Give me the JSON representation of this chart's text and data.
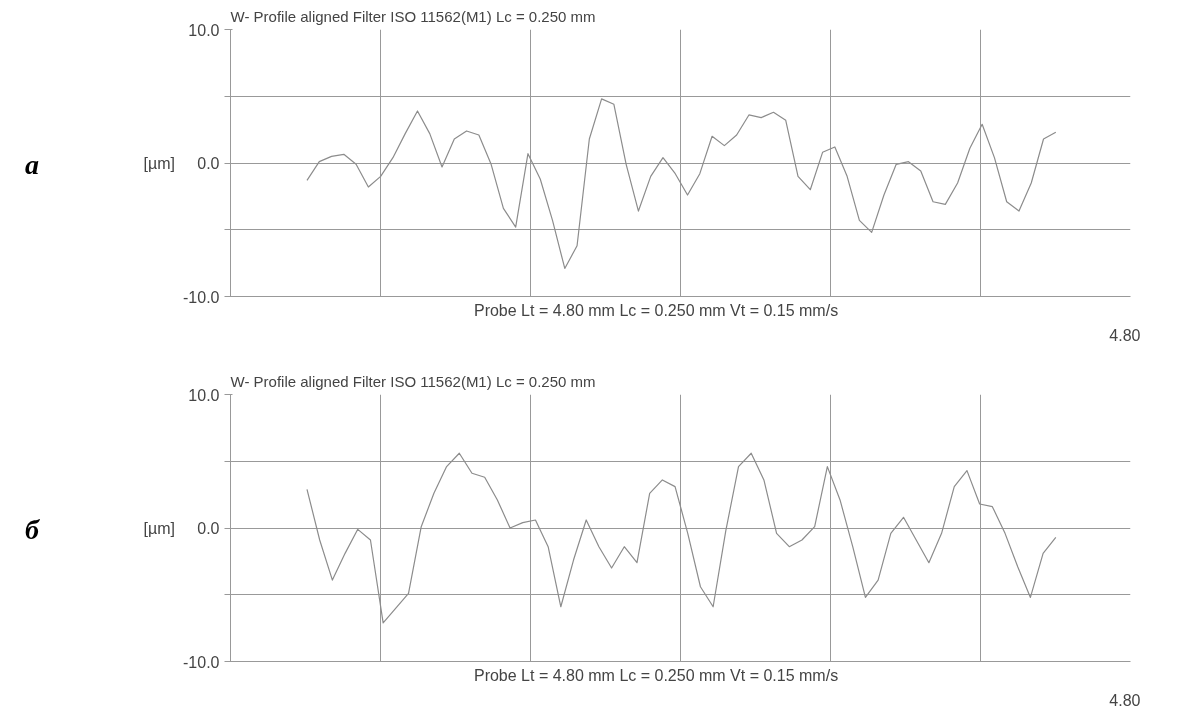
{
  "chart_data": [
    {
      "type": "line",
      "title": "W-  Profile  aligned  Filter  ISO 11562(M1)  Lc = 0.250  mm",
      "xlabel": "Probe     Lt = 4.80  mm  Lc = 0.250  mm    Vt = 0.15  mm/s",
      "ylabel": "[µm]",
      "annotations": [
        "a",
        "4.80"
      ],
      "grid": true,
      "ylim": [
        -10,
        10
      ],
      "categories": [
        null,
        null,
        null,
        null,
        null,
        null,
        null,
        null,
        null,
        null,
        null,
        null,
        null,
        null,
        null,
        null,
        null,
        null,
        null,
        null,
        null,
        null,
        null,
        null,
        null,
        null,
        null,
        null,
        null,
        null,
        null,
        null,
        null,
        null,
        null,
        null,
        null,
        null,
        null,
        null,
        null,
        null,
        null,
        null,
        null,
        null,
        null,
        null,
        null,
        null,
        null,
        null,
        null,
        null,
        null,
        null,
        null,
        null,
        null,
        null,
        null,
        null
      ],
      "yticks": [
        {
          "value": -10,
          "label": "-10.0"
        },
        {
          "value": -5,
          "label": null
        },
        {
          "value": 0,
          "label": "0.0"
        },
        {
          "value": 5,
          "label": null
        },
        {
          "value": 10,
          "label": "10.0"
        }
      ],
      "series": [
        {
          "color": "#8c8c8c",
          "values": [
            -1.3,
            0.1,
            0.5,
            0.65,
            -0.1,
            -1.8,
            -1.0,
            0.4,
            2.2,
            3.9,
            2.2,
            -0.3,
            1.8,
            2.4,
            2.1,
            -0.1,
            -3.4,
            -4.8,
            0.7,
            -1.2,
            -4.3,
            -7.9,
            -6.2,
            1.8,
            4.8,
            4.4,
            -0.1,
            -3.6,
            -1.0,
            0.4,
            -0.8,
            -2.4,
            -0.8,
            2.0,
            1.3,
            2.1,
            3.6,
            3.4,
            3.8,
            3.2,
            -1.0,
            -2.0,
            0.8,
            1.2,
            -1.0,
            -4.3,
            -5.2,
            -2.4,
            -0.1,
            0.1,
            -0.6,
            -2.9,
            -3.1,
            -1.5,
            1.1,
            2.9,
            0.4,
            -2.9,
            -3.6,
            -1.5,
            1.8,
            2.3
          ]
        }
      ]
    },
    {
      "type": "line",
      "title": "W-  Profile  aligned  Filter  ISO 11562(M1)  Lc = 0.250  mm",
      "xlabel": "Probe     Lt = 4.80  mm  Lc = 0.250  mm    Vt = 0.15  mm/s",
      "ylabel": "[µm]",
      "annotations": [
        "б",
        "4.80"
      ],
      "grid": true,
      "ylim": [
        -10,
        10
      ],
      "categories": [
        null,
        null,
        null,
        null,
        null,
        null,
        null,
        null,
        null,
        null,
        null,
        null,
        null,
        null,
        null,
        null,
        null,
        null,
        null,
        null,
        null,
        null,
        null,
        null,
        null,
        null,
        null,
        null,
        null,
        null,
        null,
        null,
        null,
        null,
        null,
        null,
        null,
        null,
        null,
        null,
        null,
        null,
        null,
        null,
        null,
        null,
        null,
        null,
        null,
        null,
        null,
        null,
        null,
        null,
        null,
        null,
        null,
        null,
        null,
        null
      ],
      "yticks": [
        {
          "value": -10,
          "label": "-10.0"
        },
        {
          "value": -5,
          "label": null
        },
        {
          "value": 0,
          "label": "0.0"
        },
        {
          "value": 5,
          "label": null
        },
        {
          "value": 10,
          "label": "10.0"
        }
      ],
      "series": [
        {
          "color": "#8c8c8c",
          "values": [
            2.9,
            -0.9,
            -3.9,
            -1.9,
            -0.1,
            -0.9,
            -7.1,
            -6.0,
            -4.9,
            0.1,
            2.6,
            4.6,
            5.6,
            4.1,
            3.8,
            2.1,
            0.0,
            0.4,
            0.6,
            -1.4,
            -5.9,
            -2.4,
            0.6,
            -1.4,
            -3.0,
            -1.4,
            -2.6,
            2.6,
            3.6,
            3.1,
            -0.4,
            -4.4,
            -5.9,
            -0.2,
            4.6,
            5.6,
            3.6,
            -0.4,
            -1.4,
            -0.9,
            0.1,
            4.6,
            2.1,
            -1.4,
            -5.2,
            -3.9,
            -0.4,
            0.8,
            -0.9,
            -2.6,
            -0.4,
            3.1,
            4.3,
            1.8,
            1.6,
            -0.4,
            -2.9,
            -5.2,
            -1.9,
            -0.7
          ]
        }
      ]
    }
  ]
}
